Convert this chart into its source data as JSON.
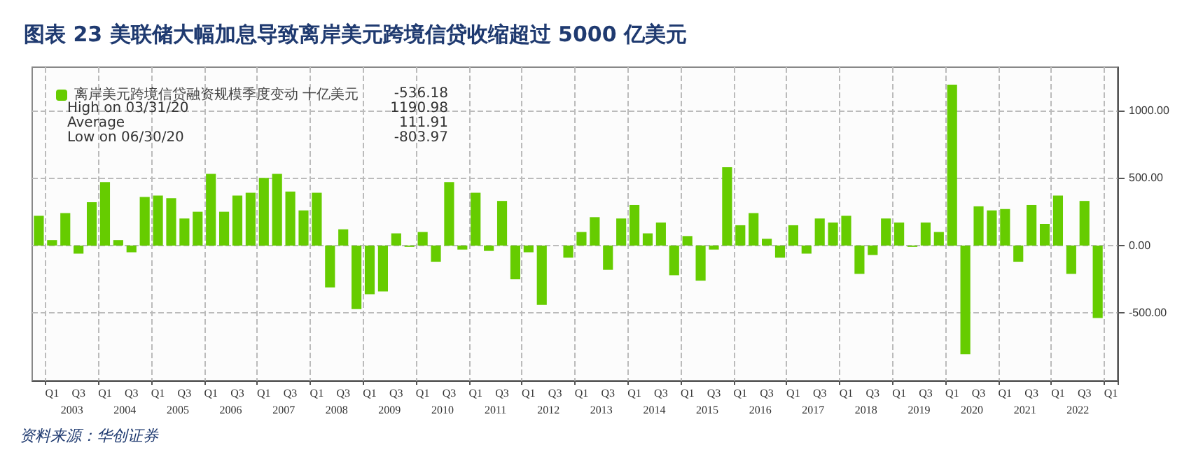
{
  "chart_data": {
    "type": "bar",
    "title": "图表 23 美联储大幅加息导致离岸美元跨境信贷收缩超过 5000 亿美元",
    "categories": [
      null,
      "Q1",
      null,
      "Q3",
      null,
      "Q1",
      null,
      "Q3",
      null,
      "Q1",
      null,
      "Q3",
      null,
      "Q1",
      null,
      "Q3",
      null,
      "Q1",
      null,
      "Q3",
      null,
      "Q1",
      null,
      "Q3",
      null,
      "Q1",
      null,
      "Q3",
      null,
      "Q1",
      null,
      "Q3",
      null,
      "Q1",
      null,
      "Q3",
      null,
      "Q1",
      null,
      "Q3",
      null,
      "Q1",
      null,
      "Q3",
      null,
      "Q1",
      null,
      "Q3",
      null,
      "Q1",
      null,
      "Q3",
      null,
      "Q1",
      null,
      "Q3",
      null,
      "Q1",
      null,
      "Q3",
      null,
      "Q1",
      null,
      "Q3",
      null,
      "Q1",
      null,
      "Q3",
      null,
      "Q1",
      null,
      "Q3",
      null,
      "Q1",
      null,
      "Q3",
      null,
      "Q1",
      null,
      "Q3",
      null,
      "Q1"
    ],
    "series": [
      {
        "name": "离岸美元跨境信贷融资规模季度变动 十亿美元",
        "color": "#66cc00",
        "values": [
          220,
          40,
          240,
          -60,
          320,
          470,
          40,
          -50,
          360,
          370,
          350,
          200,
          250,
          530,
          250,
          370,
          390,
          500,
          530,
          400,
          260,
          390,
          -310,
          120,
          -470,
          -360,
          -340,
          90,
          -10,
          100,
          -120,
          470,
          -30,
          390,
          -40,
          330,
          -250,
          -50,
          -440,
          0,
          -90,
          100,
          210,
          -180,
          200,
          300,
          90,
          170,
          -220,
          70,
          -260,
          -30,
          580,
          150,
          240,
          50,
          -90,
          150,
          -60,
          200,
          170,
          220,
          -210,
          -70,
          200,
          170,
          -10,
          170,
          100,
          1190.98,
          -803.97,
          290,
          260,
          270,
          -120,
          300,
          160,
          370,
          -210,
          330,
          -536.18,
          null
        ]
      }
    ],
    "ylim": [
      -1000,
      1320
    ],
    "yticks": [
      {
        "value": 1000,
        "label": "1000.00"
      },
      {
        "value": 500,
        "label": "500.00"
      },
      {
        "value": 0,
        "label": "0.00"
      },
      {
        "value": -500,
        "label": "-500.00"
      }
    ],
    "grid": true,
    "legend": "top left",
    "annotations": [
      "-536.18",
      "High on 03/31/20",
      "1190.98",
      "Average",
      "111.91",
      "Low on 06/30/20",
      "-803.97",
      "2003",
      "2004",
      "2005",
      "2006",
      "2007",
      "2008",
      "2009",
      "2010",
      "2011",
      "2012",
      "2013",
      "2014",
      "2015",
      "2016",
      "2017",
      "2018",
      "2019",
      "2020",
      "2021",
      "2022",
      "资料来源：华创证券"
    ]
  }
}
